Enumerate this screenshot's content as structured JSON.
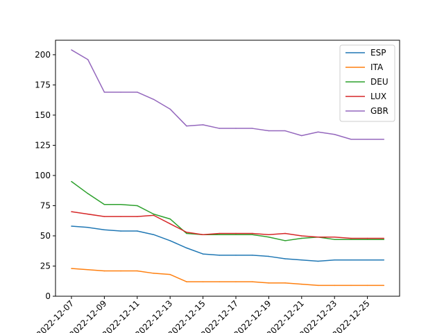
{
  "chart_data": {
    "type": "line",
    "title": "",
    "xlabel": "",
    "ylabel": "",
    "x": [
      "2022-12-07",
      "2022-12-08",
      "2022-12-09",
      "2022-12-10",
      "2022-12-11",
      "2022-12-12",
      "2022-12-13",
      "2022-12-14",
      "2022-12-15",
      "2022-12-16",
      "2022-12-17",
      "2022-12-18",
      "2022-12-19",
      "2022-12-20",
      "2022-12-21",
      "2022-12-22",
      "2022-12-23",
      "2022-12-24",
      "2022-12-25",
      "2022-12-26"
    ],
    "x_tick_labels": [
      "2022-12-07",
      "2022-12-09",
      "2022-12-11",
      "2022-12-13",
      "2022-12-15",
      "2022-12-17",
      "2022-12-19",
      "2022-12-21",
      "2022-12-23",
      "2022-12-25"
    ],
    "ylim": [
      0,
      212
    ],
    "y_ticks": [
      0,
      25,
      50,
      75,
      100,
      125,
      150,
      175,
      200
    ],
    "grid": false,
    "legend_position": "top-right",
    "series": [
      {
        "name": "ESP",
        "color": "#1f77b4",
        "values": [
          58,
          57,
          55,
          54,
          54,
          51,
          46,
          40,
          35,
          34,
          34,
          34,
          33,
          31,
          30,
          29,
          30,
          30,
          30,
          30
        ]
      },
      {
        "name": "ITA",
        "color": "#ff7f0e",
        "values": [
          23,
          22,
          21,
          21,
          21,
          19,
          18,
          12,
          12,
          12,
          12,
          12,
          11,
          11,
          10,
          9,
          9,
          9,
          9,
          9
        ]
      },
      {
        "name": "DEU",
        "color": "#2ca02c",
        "values": [
          95,
          85,
          76,
          76,
          75,
          68,
          64,
          52,
          51,
          51,
          51,
          51,
          49,
          46,
          48,
          49,
          47,
          47,
          47,
          47
        ]
      },
      {
        "name": "LUX",
        "color": "#d62728",
        "values": [
          70,
          68,
          66,
          66,
          66,
          67,
          60,
          53,
          51,
          52,
          52,
          52,
          51,
          52,
          50,
          49,
          49,
          48,
          48,
          48
        ]
      },
      {
        "name": "GBR",
        "color": "#9467bd",
        "values": [
          204,
          196,
          169,
          169,
          169,
          163,
          155,
          141,
          142,
          139,
          139,
          139,
          137,
          137,
          133,
          136,
          134,
          130,
          130,
          130
        ]
      }
    ]
  }
}
